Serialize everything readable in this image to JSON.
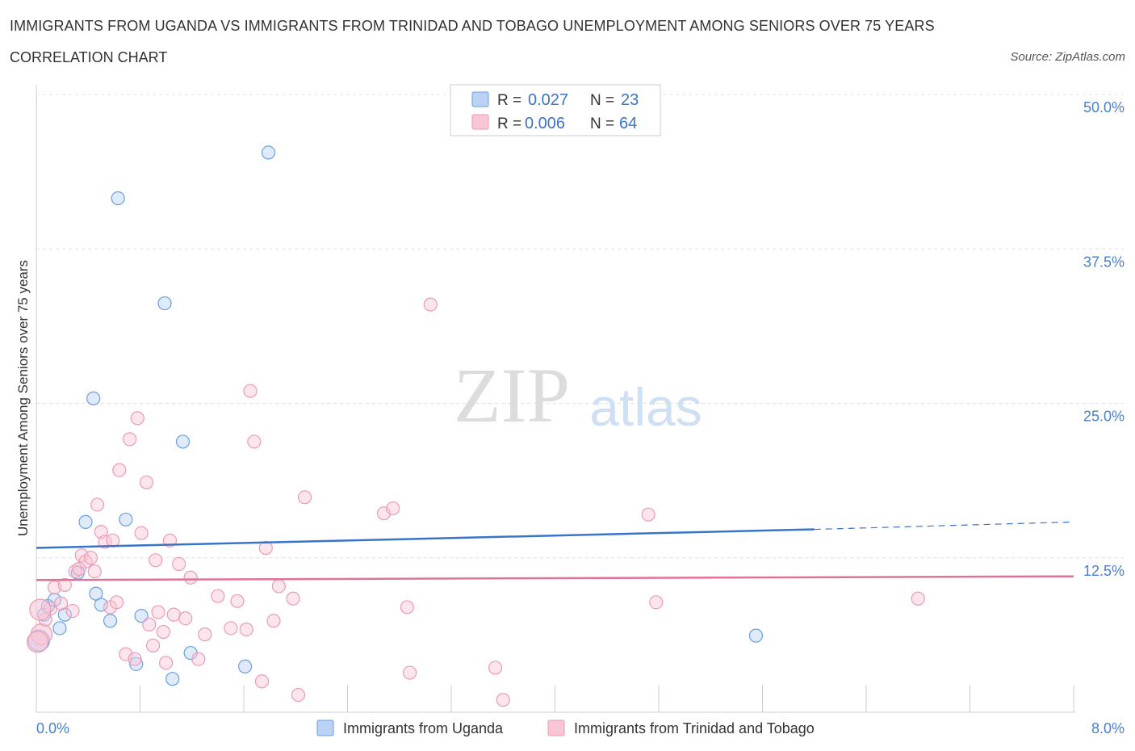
{
  "chart_data": {
    "type": "scatter",
    "title": "IMMIGRANTS FROM UGANDA VS IMMIGRANTS FROM TRINIDAD AND TOBAGO UNEMPLOYMENT AMONG SENIORS OVER 75 YEARS",
    "subtitle": "CORRELATION CHART",
    "source": "Source: ZipAtlas.com",
    "watermark": "ZIPatlas",
    "xlabel": "",
    "ylabel": "Unemployment Among Seniors over 75 years",
    "xlim": [
      0,
      8
    ],
    "ylim": [
      0,
      50
    ],
    "x_tick_labels": [
      "0.0%",
      "8.0%"
    ],
    "y_ticks": [
      12.5,
      25,
      37.5,
      50
    ],
    "y_tick_labels": [
      "12.5%",
      "25.0%",
      "37.5%",
      "50.0%"
    ],
    "legend": {
      "series1": {
        "r_label": "R =",
        "r_value": "0.027",
        "n_label": "N =",
        "n_value": "23"
      },
      "series2": {
        "r_label": "R =",
        "r_value": "0.006",
        "n_label": "N =",
        "n_value": "64"
      }
    },
    "series": [
      {
        "name": "Immigrants from Uganda",
        "color": "#6a9fe0",
        "fill": "#b9d2f5",
        "line_color": "#3a74c9",
        "trend": {
          "x0": 0,
          "y0": 13.3,
          "x1": 6.0,
          "y1": 14.8,
          "dash_to_x": 8.0,
          "dash_to_y": 15.4
        },
        "points": [
          [
            0.02,
            5.8
          ],
          [
            0.06,
            7.9
          ],
          [
            0.09,
            8.6
          ],
          [
            0.14,
            9.1
          ],
          [
            0.18,
            6.8
          ],
          [
            0.22,
            7.9
          ],
          [
            0.32,
            11.3
          ],
          [
            0.38,
            15.4
          ],
          [
            0.44,
            25.4
          ],
          [
            0.46,
            9.6
          ],
          [
            0.5,
            8.7
          ],
          [
            0.57,
            7.4
          ],
          [
            0.63,
            41.6
          ],
          [
            0.69,
            15.6
          ],
          [
            0.77,
            3.9
          ],
          [
            0.81,
            7.8
          ],
          [
            0.99,
            33.1
          ],
          [
            1.05,
            2.7
          ],
          [
            1.13,
            21.9
          ],
          [
            1.19,
            4.8
          ],
          [
            1.61,
            3.7
          ],
          [
            1.79,
            45.3
          ],
          [
            5.55,
            6.2
          ]
        ]
      },
      {
        "name": "Immigrants from Trinidad and Tobago",
        "color": "#ee9ab3",
        "fill": "#f8c6d5",
        "line_color": "#e0729a",
        "trend": {
          "x0": 0,
          "y0": 10.7,
          "x1": 8.0,
          "y1": 11.0
        },
        "points": [
          [
            0.04,
            6.3
          ],
          [
            0.07,
            7.5
          ],
          [
            0.11,
            8.4
          ],
          [
            0.14,
            10.1
          ],
          [
            0.19,
            8.8
          ],
          [
            0.22,
            10.3
          ],
          [
            0.28,
            8.2
          ],
          [
            0.3,
            11.4
          ],
          [
            0.35,
            12.7
          ],
          [
            0.38,
            12.2
          ],
          [
            0.42,
            12.5
          ],
          [
            0.45,
            11.4
          ],
          [
            0.47,
            16.8
          ],
          [
            0.5,
            14.6
          ],
          [
            0.53,
            13.8
          ],
          [
            0.57,
            8.5
          ],
          [
            0.59,
            13.9
          ],
          [
            0.62,
            8.9
          ],
          [
            0.64,
            19.6
          ],
          [
            0.69,
            4.7
          ],
          [
            0.72,
            22.1
          ],
          [
            0.76,
            4.3
          ],
          [
            0.78,
            23.8
          ],
          [
            0.81,
            14.5
          ],
          [
            0.85,
            18.6
          ],
          [
            0.87,
            7.1
          ],
          [
            0.9,
            5.4
          ],
          [
            0.92,
            12.3
          ],
          [
            0.94,
            8.1
          ],
          [
            0.98,
            6.5
          ],
          [
            1.0,
            4.0
          ],
          [
            1.03,
            13.9
          ],
          [
            1.06,
            7.9
          ],
          [
            1.1,
            12.0
          ],
          [
            1.15,
            7.6
          ],
          [
            1.19,
            10.9
          ],
          [
            1.25,
            4.3
          ],
          [
            1.3,
            6.3
          ],
          [
            1.4,
            9.4
          ],
          [
            1.5,
            6.8
          ],
          [
            1.55,
            9.0
          ],
          [
            1.62,
            6.7
          ],
          [
            1.65,
            26.0
          ],
          [
            1.68,
            21.9
          ],
          [
            1.74,
            2.5
          ],
          [
            1.77,
            13.3
          ],
          [
            1.83,
            7.4
          ],
          [
            1.87,
            10.2
          ],
          [
            1.98,
            9.2
          ],
          [
            2.02,
            1.4
          ],
          [
            2.07,
            17.4
          ],
          [
            2.68,
            16.1
          ],
          [
            2.75,
            16.5
          ],
          [
            2.86,
            8.5
          ],
          [
            2.88,
            3.2
          ],
          [
            3.04,
            33.0
          ],
          [
            3.54,
            3.6
          ],
          [
            3.6,
            1.0
          ],
          [
            4.72,
            16.0
          ],
          [
            4.78,
            8.9
          ],
          [
            6.8,
            9.2
          ],
          [
            0.01,
            5.7
          ],
          [
            0.03,
            8.3
          ],
          [
            0.33,
            11.6
          ]
        ]
      }
    ]
  }
}
